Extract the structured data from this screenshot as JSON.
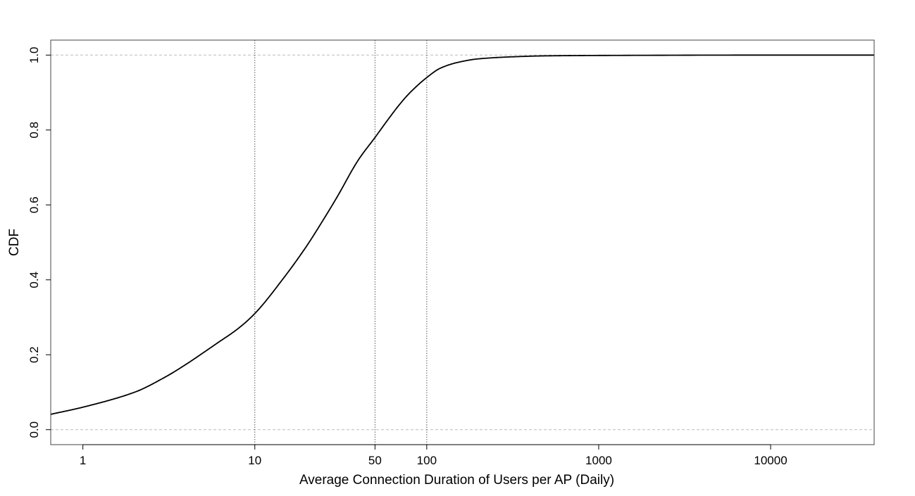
{
  "chart_data": {
    "type": "line",
    "title": "",
    "xlabel": "Average Connection Duration of Users per AP (Daily)",
    "ylabel": "CDF",
    "xscale": "log",
    "xlim": [
      0.65,
      40000
    ],
    "ylim": [
      -0.04,
      1.04
    ],
    "x_ticks": [
      1,
      10,
      50,
      100,
      1000,
      10000
    ],
    "x_tick_labels": [
      "1",
      "10",
      "50",
      "100",
      "1000",
      "10000"
    ],
    "y_ticks": [
      0.0,
      0.2,
      0.4,
      0.6,
      0.8,
      1.0
    ],
    "y_tick_labels": [
      "0.0",
      "0.2",
      "0.4",
      "0.6",
      "0.8",
      "1.0"
    ],
    "horizontal_reference_lines": [
      0.0,
      1.0
    ],
    "vertical_reference_lines": [
      10,
      50,
      100
    ],
    "grid": false,
    "series": [
      {
        "x": [
          0.65,
          1,
          2,
          3,
          4,
          5,
          6,
          8,
          10,
          15,
          20,
          25,
          30,
          40,
          50,
          60,
          70,
          80,
          100,
          120,
          150,
          200,
          300,
          500,
          1000,
          10000,
          40000
        ],
        "y": [
          0.041,
          0.06,
          0.1,
          0.14,
          0.175,
          0.205,
          0.23,
          0.27,
          0.31,
          0.41,
          0.49,
          0.56,
          0.62,
          0.72,
          0.78,
          0.83,
          0.87,
          0.9,
          0.94,
          0.965,
          0.98,
          0.99,
          0.995,
          0.998,
          0.999,
          1.0,
          1.0
        ],
        "color": "#000000"
      }
    ]
  }
}
